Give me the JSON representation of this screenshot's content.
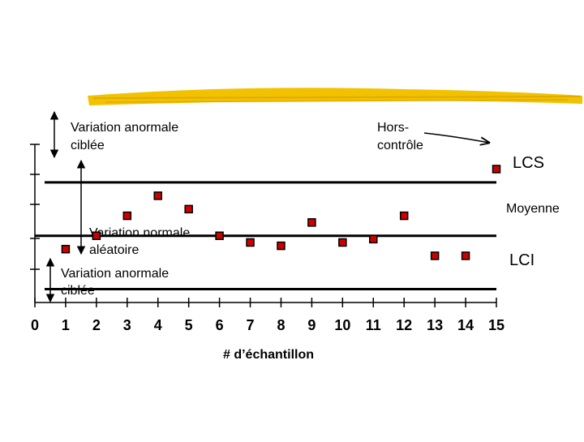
{
  "chart_data": {
    "type": "scatter",
    "x": [
      1,
      2,
      3,
      4,
      5,
      6,
      7,
      8,
      9,
      10,
      11,
      12,
      13,
      14,
      15
    ],
    "y": [
      3.0,
      5.0,
      8.0,
      11.0,
      9.0,
      5.0,
      4.0,
      3.5,
      7.0,
      4.0,
      4.5,
      8.0,
      2.0,
      2.0,
      15.0
    ],
    "xlim": [
      0,
      15
    ],
    "ylim": [
      -5,
      26
    ],
    "xticks": [
      "0",
      "1",
      "2",
      "3",
      "4",
      "5",
      "6",
      "7",
      "8",
      "9",
      "10",
      "11",
      "12",
      "13",
      "14",
      "15"
    ],
    "xlabel": "# d’échantillon",
    "limits": {
      "ucl": {
        "label": "LCS",
        "value": 13
      },
      "mean": {
        "label": "Moyenne",
        "value": 5
      },
      "lcl": {
        "label": "LCI",
        "value": -3
      }
    },
    "grid": false,
    "marker_color": "#cc0000"
  },
  "annotations": {
    "top_special": [
      "Variation anormale",
      "ciblée"
    ],
    "normal": [
      "Variation normale",
      "aléatoire"
    ],
    "bottom_special": [
      "Variation anormale",
      "ciblée"
    ],
    "out_of_control": [
      "Hors-",
      "contrôle"
    ]
  },
  "colors": {
    "accent_stripe": "#f2c200",
    "marker": "#cc0000",
    "line": "#000000"
  }
}
